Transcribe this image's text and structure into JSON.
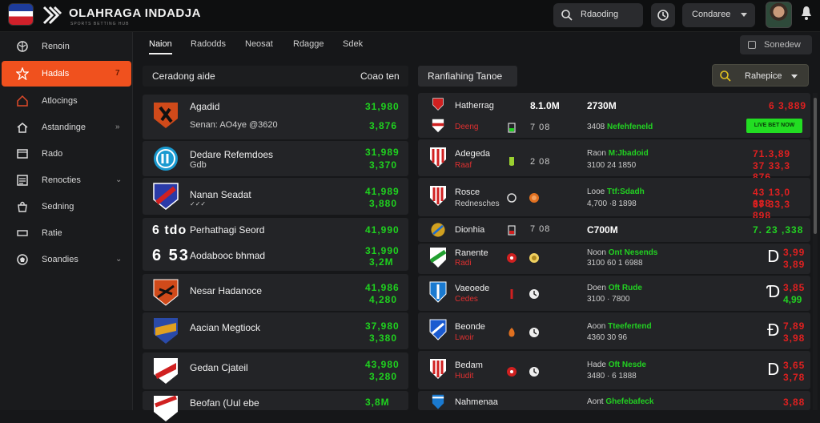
{
  "header": {
    "brand": "OLAHRAGA INDADJA",
    "brand_sub": "SPORTS BETTING HUB",
    "search_label": "Rdaoding",
    "conditions_label": "Condaree"
  },
  "sidebar": {
    "items": [
      {
        "label": "Renoin",
        "icon": "globe-icon"
      },
      {
        "label": "Hadals",
        "icon": "star-icon",
        "active": true,
        "chevron": "7"
      },
      {
        "label": "Atlocings",
        "icon": "home-icon"
      },
      {
        "label": "Astandinge",
        "icon": "house-icon",
        "chevron": "»"
      },
      {
        "label": "Rado",
        "icon": "box-icon"
      },
      {
        "label": "Renocties",
        "icon": "list-icon",
        "chevron": "⌄"
      },
      {
        "label": "Sedning",
        "icon": "bag-icon"
      },
      {
        "label": "Ratie",
        "icon": "minus-icon"
      },
      {
        "label": "Soandies",
        "icon": "ball-icon",
        "chevron": "⌄"
      }
    ]
  },
  "tabs": [
    {
      "label": "Naion",
      "active": true
    },
    {
      "label": "Radodds"
    },
    {
      "label": "Neosat"
    },
    {
      "label": "Rdagge"
    },
    {
      "label": "Sdek"
    }
  ],
  "overview_label": "Sonedew",
  "left_panel": {
    "title": "Ceradong aide",
    "right_label": "Coao ten",
    "rows": [
      {
        "name": "Agadid",
        "sub": "Senan: AO4ye @3620",
        "odd1": "31,980",
        "odd2": "3,876"
      },
      {
        "name": "Dedare Refemdoes",
        "sub": "Gdb",
        "odd1": "31,989",
        "odd2": "3,370"
      },
      {
        "name": "Nanan Seadat",
        "sub": "✓✓✓",
        "odd1": "41,989",
        "odd2": "3,880"
      },
      {
        "big": "6 tdo",
        "name": "Perhathagi Seord",
        "odd1": "41,990"
      },
      {
        "big": "6 53",
        "name": "Aodabooc bhmad",
        "odd1": "31,990",
        "odd2": "3,2M"
      },
      {
        "name": "Nesar Hadanoce",
        "odd1": "41,986",
        "odd2": "4,280"
      },
      {
        "name": "Aacian Megtiock",
        "odd1": "37,980",
        "odd2": "3,380"
      },
      {
        "name": "Gedan Cjateil",
        "odd1": "43,980",
        "odd2": "3,280"
      },
      {
        "name": "Beofan (Uul ebe",
        "odd1": "3,8M"
      }
    ]
  },
  "right_panel": {
    "title": "Ranfiahing Tanoe",
    "filter_label": "Rahepice",
    "rows": [
      {
        "n1": "Hatherrag",
        "n2": "Deeng",
        "c1": "8.1.0M",
        "c1s": "7 08",
        "c2": "2730M",
        "c2s_pre": "3408",
        "c2s_hi": "Nefehfeneld",
        "red": "6 3,889",
        "pill": "LIVE BET NOW"
      },
      {
        "n1": "Adegeda",
        "n2": "Raaf",
        "c1s": "2 08",
        "c2s_pre": "Raon",
        "c2s_hi": "M:Jbadoid",
        "c3": "3100 24 1850",
        "red": "71.3,89",
        "red2": "37 33,3 876"
      },
      {
        "n1": "Rosce",
        "n2": "Rednesches",
        "n2w": true,
        "c2s_pre": "Looe",
        "c2s_hi": "Ttf:Sdadh",
        "c3": "4,700 ·8 1898",
        "red": "43 13,0 688",
        "red2": "37 33,3 898"
      },
      {
        "n1": "Dionhia",
        "n2": "",
        "c1s": "7 08",
        "c2": "C700M",
        "green": "7. 23 ,338"
      },
      {
        "n1": "Ranente",
        "n2": "Radi",
        "c2s_pre": "Noon",
        "c2s_hi": "Ont Nesends",
        "c3": "3100 60 1 6988",
        "glyph": "D",
        "red": "3,99",
        "red2": "3,89"
      },
      {
        "n1": "Vaeoede",
        "n2": "Cedes",
        "c2s_pre": "Doen",
        "c2s_hi": "Oft Rude",
        "c3": "3100 · 7800",
        "glyph": "Ɗ",
        "red": "3,85",
        "green2": "4,99"
      },
      {
        "n1": "Beonde",
        "n2": "Lwoir",
        "c2s_pre": "Aoon",
        "c2s_hi": "Tteefertend",
        "c3": "4360 30 96",
        "glyph": "Ɖ",
        "red": "7,89",
        "red2": "3,98"
      },
      {
        "n1": "Bedam",
        "n2": "Hudit",
        "c2s_pre": "Hade",
        "c2s_hi": "Oft Nesde",
        "c3": "3480 · 6 1888",
        "glyph": "D",
        "red": "3,65",
        "red2": "3,78"
      },
      {
        "n1": "Nahmenaa",
        "c2s_pre": "Aont",
        "c2s_hi": "Ghefebafeck",
        "red": "3,88"
      }
    ]
  },
  "colors": {
    "accent": "#f0511e",
    "positive": "#1fd21f",
    "negative": "#e02020"
  }
}
